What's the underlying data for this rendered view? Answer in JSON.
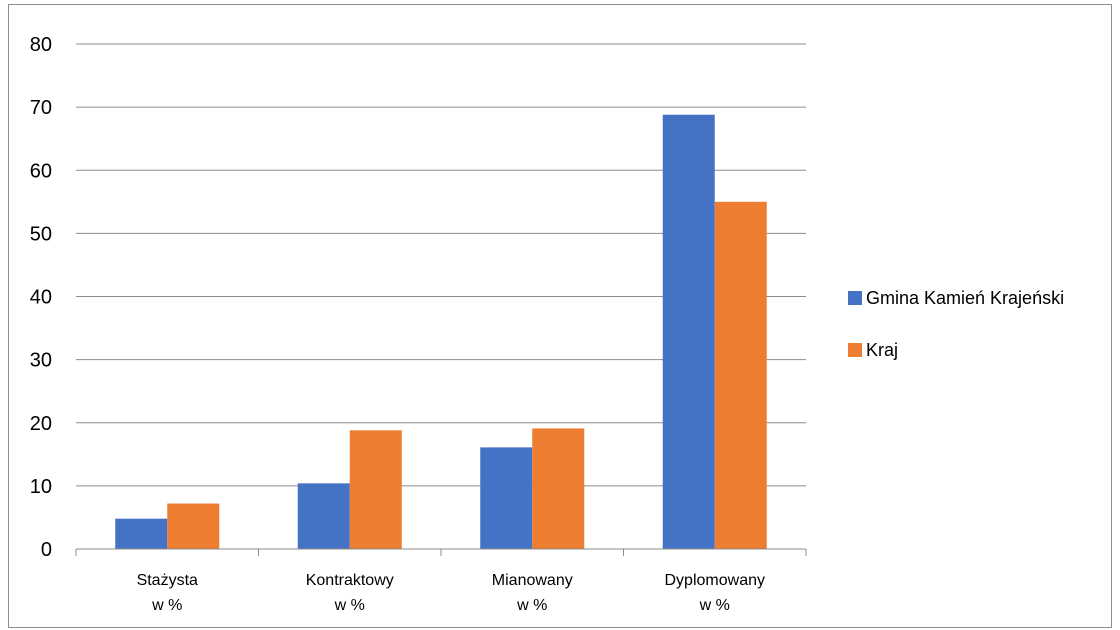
{
  "chart_data": {
    "type": "bar",
    "title": "",
    "xlabel": "",
    "ylabel": "",
    "categories": [
      [
        "Stażysta",
        "w %"
      ],
      [
        "Kontraktowy",
        "w %"
      ],
      [
        "Mianowany",
        "w %"
      ],
      [
        "Dyplomowany",
        "w %"
      ]
    ],
    "series": [
      {
        "name": "Gmina Kamień Krajeński",
        "color": "#4472c4",
        "values": [
          4.8,
          10.4,
          16.1,
          68.8
        ]
      },
      {
        "name": "Kraj",
        "color": "#ed7d31",
        "values": [
          7.2,
          18.8,
          19.1,
          55.0
        ]
      }
    ],
    "ylim": [
      0,
      80
    ],
    "yticks": [
      0,
      10,
      20,
      30,
      40,
      50,
      60,
      70,
      80
    ],
    "grid": true,
    "legend": "right"
  }
}
